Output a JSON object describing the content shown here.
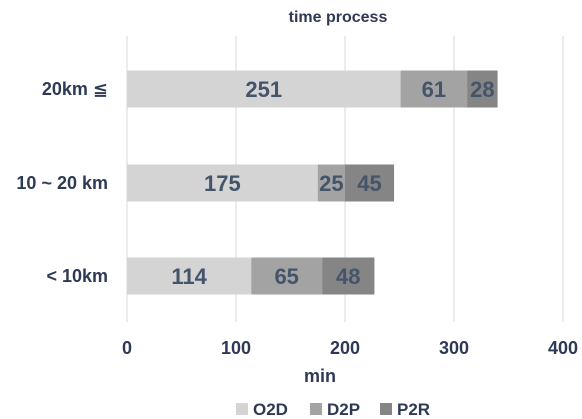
{
  "chart_data": {
    "type": "bar",
    "orientation": "horizontal",
    "stacked": true,
    "title": "time process",
    "xlabel": "min",
    "ylabel": "",
    "categories": [
      "20km ≦",
      "10 ~ 20 km",
      "< 10km"
    ],
    "series": [
      {
        "name": "O2D",
        "values": [
          251,
          175,
          114
        ],
        "color": "#d4d4d4"
      },
      {
        "name": "D2P",
        "values": [
          61,
          25,
          65
        ],
        "color": "#a3a3a3"
      },
      {
        "name": "P2R",
        "values": [
          28,
          45,
          48
        ],
        "color": "#858585"
      }
    ],
    "xlim": [
      0,
      400
    ],
    "xticks": [
      0,
      100,
      200,
      300,
      400
    ],
    "grid": true,
    "legend_position": "bottom"
  }
}
